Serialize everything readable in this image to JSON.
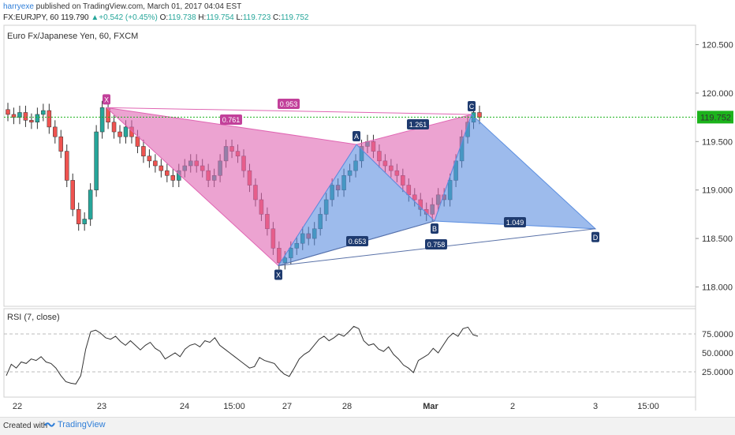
{
  "header": {
    "user": "harryexe",
    "published_text": " published on TradingView.com, March 01, 2017 04:04 EST",
    "symbol": "FX:EURJPY, 60",
    "last": "119.790",
    "change": "+0.542 (+0.45%)",
    "o_label": "O:",
    "o": "119.738",
    "h_label": "H:",
    "h": "119.754",
    "l_label": "L:",
    "l": "119.723",
    "c_label": "C:",
    "c": "119.752"
  },
  "chart_data": [
    {
      "type": "candlestick",
      "title": "Euro Fx/Japanese Yen, 60, FXCM",
      "ylim": [
        117.8,
        120.7
      ],
      "y_ticks": [
        "120.500",
        "120.000",
        "119.500",
        "119.000",
        "118.500",
        "118.000"
      ],
      "current_price_label": "119.752",
      "current_price": 119.752,
      "x_ticks": [
        "22",
        "23",
        "24",
        "15:00",
        "27",
        "28",
        "Mar",
        "2",
        "3",
        "15:00"
      ],
      "close_series": [
        119.78,
        119.75,
        119.8,
        119.72,
        119.7,
        119.78,
        119.82,
        119.65,
        119.55,
        119.4,
        119.1,
        118.8,
        118.65,
        118.7,
        119.0,
        119.6,
        119.85,
        119.7,
        119.6,
        119.55,
        119.65,
        119.55,
        119.45,
        119.35,
        119.3,
        119.25,
        119.2,
        119.15,
        119.1,
        119.2,
        119.25,
        119.3,
        119.25,
        119.2,
        119.1,
        119.15,
        119.3,
        119.45,
        119.4,
        119.35,
        119.2,
        119.05,
        118.9,
        118.75,
        118.6,
        118.4,
        118.25,
        118.3,
        118.4,
        118.45,
        118.55,
        118.5,
        118.6,
        118.75,
        118.9,
        119.05,
        119.0,
        119.15,
        119.2,
        119.3,
        119.45,
        119.5,
        119.4,
        119.3,
        119.25,
        119.2,
        119.15,
        119.05,
        118.95,
        118.9,
        118.8,
        118.75,
        118.85,
        118.95,
        118.9,
        119.1,
        119.3,
        119.55,
        119.7,
        119.8,
        119.75
      ],
      "harmonic_pattern": {
        "points": {
          "X": 119.85,
          "A": 119.47,
          "B": 118.68,
          "C": 119.78,
          "X2": 118.22,
          "D": 118.6
        },
        "labels": [
          "X",
          "A",
          "B",
          "C",
          "D",
          "X"
        ],
        "ratios": [
          "0.953",
          "0.761",
          "1.261",
          "0.653",
          "0.758",
          "1.049"
        ]
      }
    },
    {
      "type": "line",
      "title": "RSI (7, close)",
      "ylim": [
        0,
        100
      ],
      "y_ticks": [
        "75.0000",
        "50.0000",
        "25.0000"
      ],
      "values": [
        20,
        35,
        30,
        38,
        36,
        42,
        40,
        45,
        38,
        36,
        30,
        20,
        12,
        10,
        9,
        20,
        55,
        78,
        80,
        76,
        70,
        68,
        72,
        65,
        60,
        66,
        60,
        54,
        60,
        64,
        56,
        52,
        42,
        46,
        50,
        45,
        55,
        60,
        62,
        58,
        66,
        64,
        70,
        60,
        55,
        50,
        45,
        40,
        35,
        30,
        32,
        44,
        40,
        38,
        36,
        28,
        22,
        19,
        30,
        42,
        48,
        52,
        60,
        68,
        72,
        66,
        70,
        75,
        72,
        78,
        85,
        82,
        66,
        60,
        62,
        55,
        52,
        58,
        48,
        42,
        34,
        30,
        24,
        40,
        44,
        48,
        56,
        50,
        60,
        70,
        76,
        72,
        82,
        84,
        74,
        72
      ]
    }
  ],
  "footer": {
    "created": "Created with",
    "brand": "TradingView"
  },
  "colors": {
    "pink": "#e066b3",
    "blue": "#5b8ee0",
    "up": "#26a69a",
    "down": "#ef5350",
    "price": "#1cb31c",
    "label_dark": "#1f3b6f"
  }
}
